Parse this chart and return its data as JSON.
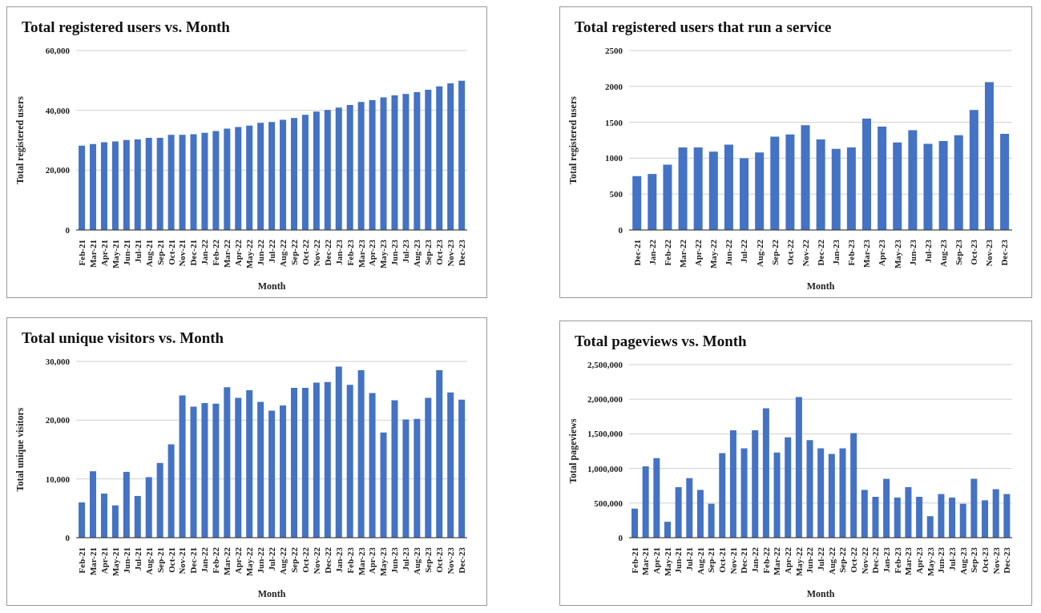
{
  "chart_data": [
    {
      "type": "bar",
      "title": "Total registered users vs. Month",
      "xlabel": "Month",
      "ylabel": "Total registered users",
      "categories": [
        "Feb-21",
        "Mar-21",
        "Apr-21",
        "May-21",
        "Jun-21",
        "Jul-21",
        "Aug-21",
        "Sep-21",
        "Oct-21",
        "Nov-21",
        "Dec-21",
        "Jan-22",
        "Feb-22",
        "Mar-22",
        "Apr-22",
        "May-22",
        "Jun-22",
        "Jul-22",
        "Aug-22",
        "Sep-22",
        "Oct-22",
        "Nov-22",
        "Dec-22",
        "Jan-23",
        "Feb-23",
        "Mar-23",
        "Apr-23",
        "May-23",
        "Jun-23",
        "Jul-23",
        "Aug-23",
        "Sep-23",
        "Oct-23",
        "Nov-23",
        "Dec-23"
      ],
      "values": [
        28200,
        28700,
        29300,
        29600,
        30100,
        30300,
        30800,
        30800,
        31800,
        31800,
        32000,
        32500,
        33100,
        33900,
        34400,
        34900,
        35800,
        36100,
        36800,
        37400,
        38500,
        39600,
        40100,
        40900,
        41800,
        42800,
        43400,
        44300,
        45000,
        45500,
        46100,
        46900,
        48000,
        49000,
        49900
      ],
      "color": "#4472c4",
      "ylim": [
        0,
        60000
      ],
      "yticks": [
        {
          "value": 0,
          "label": "0"
        },
        {
          "value": 20000,
          "label": "20,000"
        },
        {
          "value": 40000,
          "label": "40,000"
        },
        {
          "value": 60000,
          "label": "60,000"
        }
      ],
      "grid": "y"
    },
    {
      "type": "bar",
      "title": "Total registered users that run a service",
      "xlabel": "Month",
      "ylabel": "Total registered users",
      "categories": [
        "Dec-21",
        "Jan-22",
        "Feb-22",
        "Mar-22",
        "Apr-22",
        "May-22",
        "Jun-22",
        "Jul-22",
        "Aug-22",
        "Sep-22",
        "Oct-22",
        "Nov-22",
        "Dec-22",
        "Jan-23",
        "Feb-23",
        "Mar-23",
        "Apr-23",
        "May-23",
        "Jun-23",
        "Jul-23",
        "Aug-23",
        "Sep-23",
        "Oct-23",
        "Nov-23",
        "Dec-23"
      ],
      "values": [
        750,
        780,
        910,
        1150,
        1150,
        1090,
        1190,
        1000,
        1080,
        1300,
        1330,
        1460,
        1260,
        1130,
        1150,
        1550,
        1440,
        1220,
        1390,
        1200,
        1240,
        1320,
        1670,
        2060,
        1340
      ],
      "color": "#4472c4",
      "ylim": [
        0,
        2500
      ],
      "yticks": [
        0,
        500,
        1000,
        1500,
        2000,
        2500
      ],
      "grid": "y"
    },
    {
      "type": "bar",
      "title": "Total unique visitors vs. Month",
      "xlabel": "Month",
      "ylabel": "Total unique visitors",
      "categories": [
        "Feb-21",
        "Mar-21",
        "Apr-21",
        "May-21",
        "Jun-21",
        "Jul-21",
        "Aug-21",
        "Sep-21",
        "Oct-21",
        "Nov-21",
        "Dec-21",
        "Jan-22",
        "Feb-22",
        "Mar-22",
        "Apr-22",
        "May-22",
        "Jun-22",
        "Jul-22",
        "Aug-22",
        "Sep-22",
        "Oct-22",
        "Nov-22",
        "Dec-22",
        "Jan-23",
        "Feb-23",
        "Mar-23",
        "Apr-23",
        "May-23",
        "Jun-23",
        "Jul-23",
        "Aug-23",
        "Sep-23",
        "Oct-23",
        "Nov-23",
        "Dec-23"
      ],
      "values": [
        6000,
        11300,
        7500,
        5500,
        11200,
        7100,
        10300,
        12700,
        15900,
        24200,
        22300,
        22900,
        22800,
        25600,
        23800,
        25100,
        23100,
        21600,
        22500,
        25500,
        25500,
        26400,
        26500,
        29100,
        26000,
        28500,
        24600,
        17900,
        23400,
        20100,
        20200,
        23800,
        28500,
        24700,
        23500
      ],
      "color": "#4472c4",
      "ylim": [
        0,
        30000
      ],
      "yticks": [
        {
          "value": 0,
          "label": "0"
        },
        {
          "value": 10000,
          "label": "10,000"
        },
        {
          "value": 20000,
          "label": "20,000"
        },
        {
          "value": 30000,
          "label": "30,000"
        }
      ],
      "grid": "y"
    },
    {
      "type": "bar",
      "title": "Total pageviews vs. Month",
      "xlabel": "Month",
      "ylabel": "Total pageviews",
      "categories": [
        "Feb-21",
        "Mar-21",
        "Apr-21",
        "May-21",
        "Jun-21",
        "Jul-21",
        "Aug-21",
        "Sep-21",
        "Oct-21",
        "Nov-21",
        "Dec-21",
        "Jan-22",
        "Feb-22",
        "Mar-22",
        "Apr-22",
        "May-22",
        "Jun-22",
        "Jul-22",
        "Aug-22",
        "Sep-22",
        "Oct-22",
        "Nov-22",
        "Dec-22",
        "Jan-23",
        "Feb-23",
        "Mar-23",
        "Apr-23",
        "May-23",
        "Jun-23",
        "Jul-23",
        "Aug-23",
        "Sep-23",
        "Oct-23",
        "Nov-23",
        "Dec-23"
      ],
      "values": [
        420000,
        1030000,
        1150000,
        230000,
        730000,
        860000,
        690000,
        490000,
        1220000,
        1550000,
        1290000,
        1550000,
        1870000,
        1230000,
        1450000,
        2030000,
        1410000,
        1290000,
        1210000,
        1290000,
        1510000,
        690000,
        590000,
        850000,
        580000,
        730000,
        590000,
        310000,
        630000,
        580000,
        490000,
        850000,
        540000,
        700000,
        630000
      ],
      "color": "#4472c4",
      "ylim": [
        0,
        2500000
      ],
      "yticks": [
        {
          "value": 0,
          "label": "0"
        },
        {
          "value": 500000,
          "label": "500,000"
        },
        {
          "value": 1000000,
          "label": "1,000,000"
        },
        {
          "value": 1500000,
          "label": "1,500,000"
        },
        {
          "value": 2000000,
          "label": "2,000,000"
        },
        {
          "value": 2500000,
          "label": "2,500,000"
        }
      ],
      "grid": "y"
    }
  ]
}
